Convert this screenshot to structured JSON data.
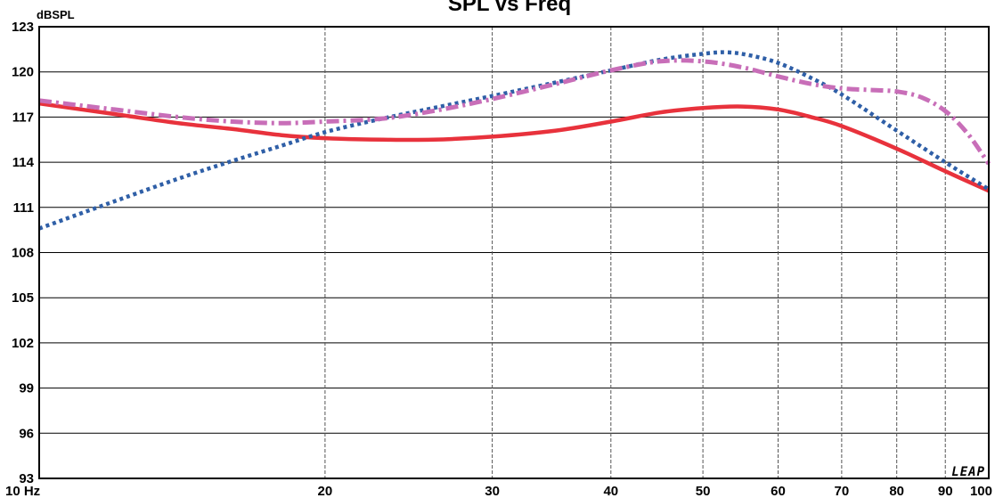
{
  "chart_data": {
    "type": "line",
    "title": "SPL vs Freq",
    "ylabel": "dBSPL",
    "xscale": "log",
    "xlim": [
      10,
      100
    ],
    "ylim": [
      93,
      123
    ],
    "grid": true,
    "x_ticks": [
      {
        "value": 10,
        "label": "10  Hz"
      },
      {
        "value": 20,
        "label": "20"
      },
      {
        "value": 30,
        "label": "30"
      },
      {
        "value": 40,
        "label": "40"
      },
      {
        "value": 50,
        "label": "50"
      },
      {
        "value": 60,
        "label": "60"
      },
      {
        "value": 70,
        "label": "70"
      },
      {
        "value": 80,
        "label": "80"
      },
      {
        "value": 90,
        "label": "90"
      },
      {
        "value": 100,
        "label": "100"
      }
    ],
    "y_ticks": [
      123,
      120,
      117,
      114,
      111,
      108,
      105,
      102,
      99,
      96,
      93
    ],
    "series": [
      {
        "color": "#e8323c",
        "style": "solid",
        "x": [
          10,
          12,
          14,
          16,
          18,
          20,
          23,
          26,
          30,
          35,
          40,
          45,
          50,
          55,
          60,
          65,
          70,
          80,
          90,
          100
        ],
        "y": [
          117.9,
          117.2,
          116.6,
          116.2,
          115.8,
          115.6,
          115.5,
          115.5,
          115.7,
          116.1,
          116.7,
          117.3,
          117.6,
          117.7,
          117.5,
          117.0,
          116.4,
          114.9,
          113.4,
          112.1
        ]
      },
      {
        "color": "#2f5fa7",
        "style": "dotted",
        "x": [
          10,
          12,
          14,
          16,
          18,
          20,
          23,
          26,
          30,
          35,
          40,
          45,
          50,
          53,
          56,
          60,
          65,
          70,
          80,
          90,
          100
        ],
        "y": [
          109.6,
          111.4,
          112.9,
          114.1,
          115.1,
          116.0,
          116.9,
          117.6,
          118.4,
          119.3,
          120.1,
          120.8,
          121.2,
          121.3,
          121.1,
          120.6,
          119.6,
          118.5,
          116.1,
          114.0,
          112.2
        ]
      },
      {
        "color": "#c86eb8",
        "style": "dash-dot",
        "x": [
          10,
          12,
          14,
          16,
          18,
          20,
          23,
          26,
          30,
          35,
          40,
          45,
          50,
          55,
          60,
          65,
          70,
          75,
          80,
          85,
          90,
          95,
          100
        ],
        "y": [
          118.1,
          117.5,
          117.0,
          116.7,
          116.6,
          116.7,
          116.9,
          117.4,
          118.2,
          119.2,
          120.1,
          120.7,
          120.7,
          120.3,
          119.7,
          119.2,
          118.9,
          118.8,
          118.7,
          118.3,
          117.4,
          115.9,
          113.9
        ]
      }
    ],
    "watermark": "LEAP"
  }
}
